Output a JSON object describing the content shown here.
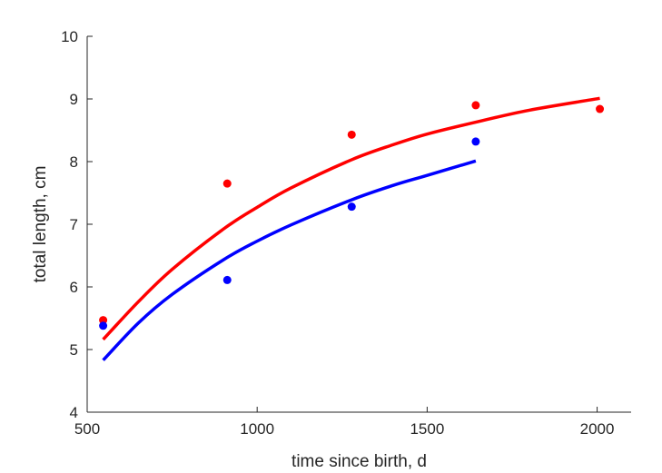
{
  "chart_data": {
    "type": "scatter",
    "title": "",
    "xlabel": "time since birth, d",
    "ylabel": "total length, cm",
    "xlim": [
      500,
      2100
    ],
    "ylim": [
      4,
      10
    ],
    "xticks": [
      500,
      1000,
      1500,
      2000
    ],
    "yticks": [
      4,
      5,
      6,
      7,
      8,
      9,
      10
    ],
    "grid": false,
    "series": [
      {
        "name": "red",
        "color": "#ff0000",
        "points": [
          [
            547,
            5.47
          ],
          [
            912,
            7.65
          ],
          [
            1278,
            8.43
          ],
          [
            1643,
            8.9
          ],
          [
            2008,
            8.84
          ]
        ],
        "fit": [
          [
            547,
            5.16
          ],
          [
            650,
            5.76
          ],
          [
            750,
            6.28
          ],
          [
            900,
            6.92
          ],
          [
            1000,
            7.27
          ],
          [
            1100,
            7.58
          ],
          [
            1278,
            8.03
          ],
          [
            1400,
            8.27
          ],
          [
            1500,
            8.44
          ],
          [
            1643,
            8.63
          ],
          [
            1800,
            8.82
          ],
          [
            2008,
            9.01
          ]
        ]
      },
      {
        "name": "blue",
        "color": "#0000ff",
        "points": [
          [
            547,
            5.38
          ],
          [
            912,
            6.11
          ],
          [
            1278,
            7.28
          ],
          [
            1643,
            8.32
          ]
        ],
        "fit": [
          [
            547,
            4.83
          ],
          [
            650,
            5.42
          ],
          [
            750,
            5.88
          ],
          [
            900,
            6.43
          ],
          [
            1000,
            6.73
          ],
          [
            1100,
            6.99
          ],
          [
            1278,
            7.39
          ],
          [
            1400,
            7.62
          ],
          [
            1500,
            7.78
          ],
          [
            1643,
            8.01
          ]
        ]
      }
    ]
  }
}
